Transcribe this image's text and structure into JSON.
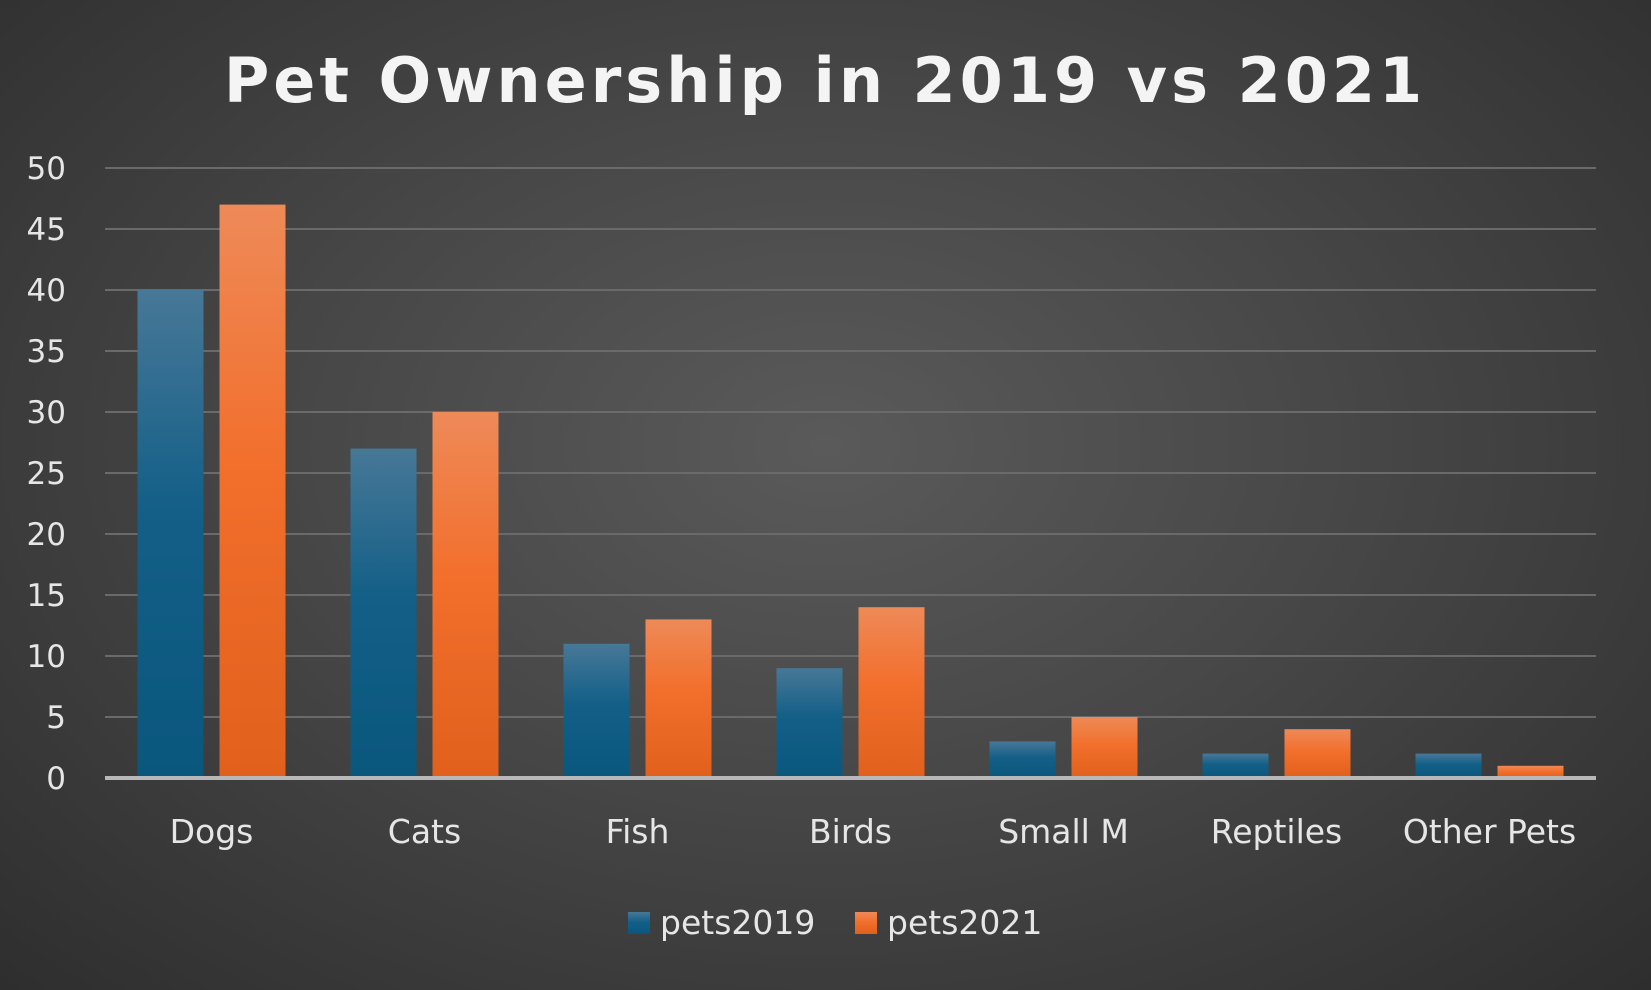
{
  "chart_data": {
    "type": "bar",
    "title": "Pet Ownership in 2019 vs 2021",
    "xlabel": "",
    "ylabel": "",
    "categories": [
      "Dogs",
      "Cats",
      "Fish",
      "Birds",
      "Small M",
      "Reptiles",
      "Other Pets"
    ],
    "series": [
      {
        "name": "pets2019",
        "values": [
          40,
          27,
          11,
          9,
          3,
          2,
          2
        ],
        "color": "#0f5f86"
      },
      {
        "name": "pets2021",
        "values": [
          47,
          30,
          13,
          14,
          5,
          4,
          1
        ],
        "color": "#f06d25"
      }
    ],
    "ylim": [
      0,
      50
    ],
    "yticks": [
      0,
      5,
      10,
      15,
      20,
      25,
      30,
      35,
      40,
      45,
      50
    ],
    "grid": true,
    "legend_position": "bottom"
  }
}
